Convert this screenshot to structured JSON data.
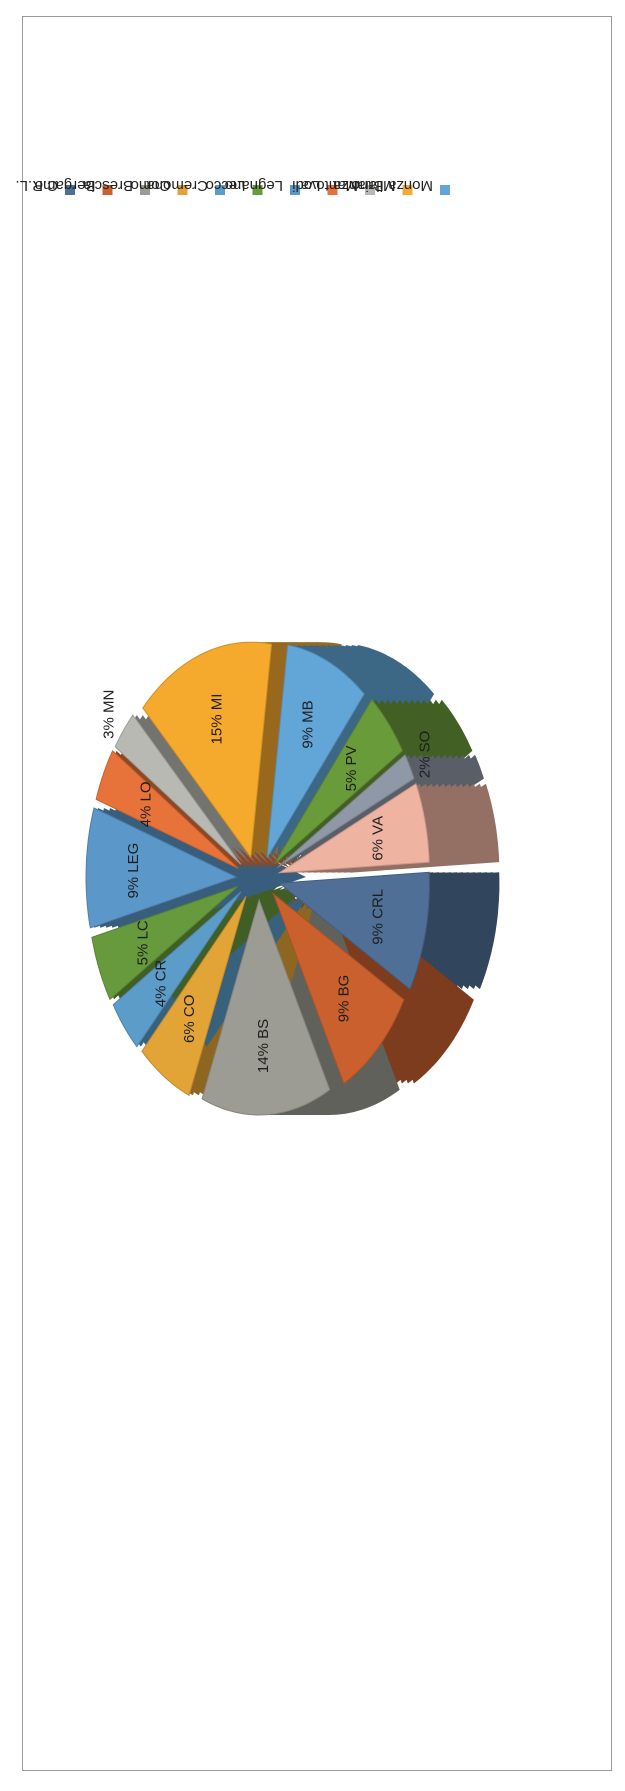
{
  "chart_data": {
    "type": "pie",
    "style": "3d-exploded",
    "orientation": "rotated-90-clockwise",
    "title": "",
    "legend_position": "right",
    "slices": [
      {
        "label": "9% CRL",
        "legend": "C.R.L.",
        "value": 9,
        "color": "#4f6f96"
      },
      {
        "label": "9% BG",
        "legend": "Bergamo",
        "value": 9,
        "color": "#c9602e"
      },
      {
        "label": "14% BS",
        "legend": "Brescia",
        "value": 14,
        "color": "#9c9c94"
      },
      {
        "label": "6% CO",
        "legend": "Como",
        "value": 6,
        "color": "#e3a437"
      },
      {
        "label": "4% CR",
        "legend": "Cremona",
        "value": 4,
        "color": "#5b9cc8"
      },
      {
        "label": "5% LC",
        "legend": "Lecco",
        "value": 5,
        "color": "#669a3d"
      },
      {
        "label": "9% LEG",
        "legend": "Legnano",
        "value": 9,
        "color": "#5c97c9"
      },
      {
        "label": "4% LO",
        "legend": "Lodi",
        "value": 4,
        "color": "#e8733a"
      },
      {
        "label": "3% MN",
        "legend": "Mantova",
        "value": 3,
        "color": "#b9b9b3"
      },
      {
        "label": "15% MI",
        "legend": "Milano",
        "value": 15,
        "color": "#f5a92d"
      },
      {
        "label": "9% MB",
        "legend": "Monza Brianza",
        "value": 9,
        "color": "#61a6d7"
      },
      {
        "label": "5% PV",
        "legend": "",
        "value": 5,
        "color": "#6a9b3a"
      },
      {
        "label": "2% SO",
        "legend": "",
        "value": 2,
        "color": "#8f98a6"
      },
      {
        "label": "6% VA",
        "legend": "",
        "value": 6,
        "color": "#efb3a2"
      }
    ]
  }
}
